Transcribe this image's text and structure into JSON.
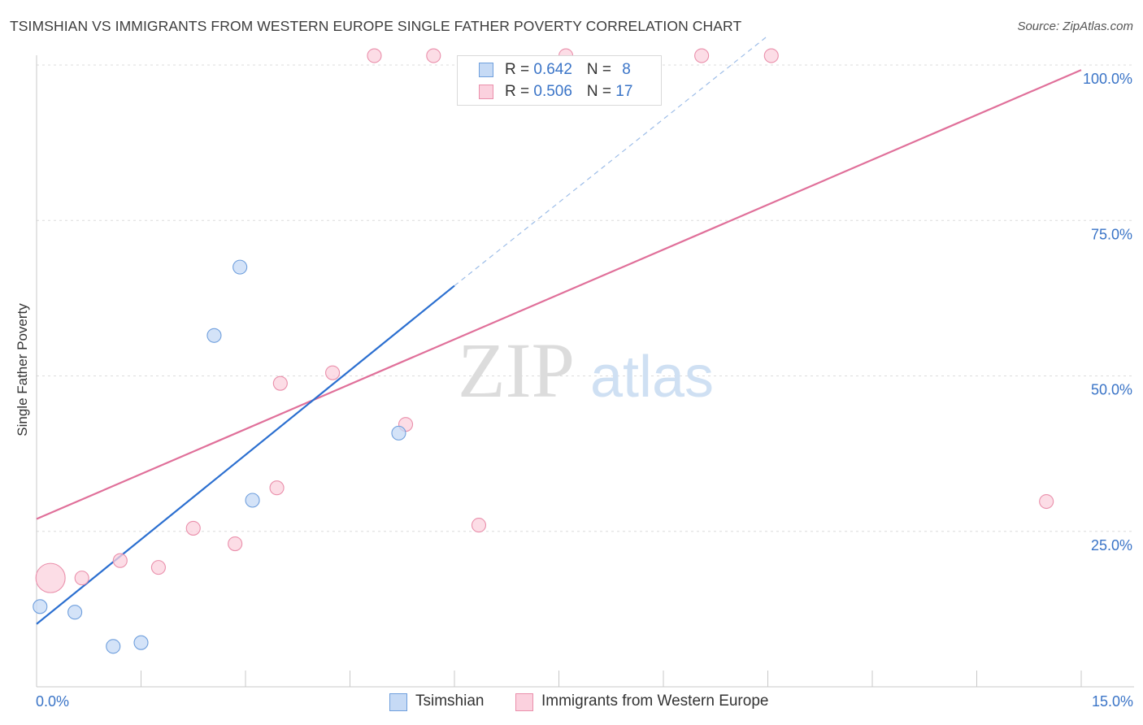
{
  "title": "TSIMSHIAN VS IMMIGRANTS FROM WESTERN EUROPE SINGLE FATHER POVERTY CORRELATION CHART",
  "source": "Source: ZipAtlas.com",
  "watermark": {
    "zip": "ZIP",
    "atlas": "atlas"
  },
  "colors": {
    "blue": "#6f9fdd",
    "blue_fill": "#c6daf5",
    "blue_line": "#2b6fd0",
    "pink": "#ea8fab",
    "pink_fill": "#fbd1de",
    "pink_line": "#e0709a",
    "tick_label": "#3a74c7",
    "grid": "#dcdcdc"
  },
  "legend_top": [
    {
      "series": "Tsimshian",
      "r_label": "R = ",
      "r_value": "0.642",
      "n_label": "N = ",
      "n_value": "8"
    },
    {
      "series": "Immigrants from Western Europe",
      "r_label": "R = ",
      "r_value": "0.506",
      "n_label": "N = ",
      "n_value": "17"
    }
  ],
  "chart_data": {
    "type": "scatter",
    "title": "TSIMSHIAN VS IMMIGRANTS FROM WESTERN EUROPE SINGLE FATHER POVERTY CORRELATION CHART",
    "xlabel": "",
    "ylabel": "Single Father Poverty",
    "xlim": [
      0,
      15
    ],
    "ylim": [
      0,
      100
    ],
    "x_tick_labels": [
      "0.0%",
      "15.0%"
    ],
    "y_ticks": [
      25,
      50,
      75,
      100
    ],
    "y_tick_labels": [
      "25.0%",
      "50.0%",
      "75.0%",
      "100.0%"
    ],
    "grid": true,
    "series": [
      {
        "name": "Tsimshian",
        "color": "#6f9fdd",
        "points": [
          {
            "x": 0.05,
            "y": 12.9,
            "size": 1
          },
          {
            "x": 0.55,
            "y": 12.0,
            "size": 1
          },
          {
            "x": 1.1,
            "y": 6.5,
            "size": 1
          },
          {
            "x": 1.5,
            "y": 7.1,
            "size": 1
          },
          {
            "x": 2.55,
            "y": 56.5,
            "size": 1
          },
          {
            "x": 2.92,
            "y": 67.5,
            "size": 1
          },
          {
            "x": 3.1,
            "y": 30.0,
            "size": 1
          },
          {
            "x": 5.2,
            "y": 40.8,
            "size": 1
          }
        ],
        "trend": {
          "x0": 0.0,
          "y0": 10.1,
          "x1": 6.0,
          "y1": 64.5,
          "dash_to_x": 10.5,
          "dash_to_y": 104.7
        }
      },
      {
        "name": "Immigrants from Western Europe",
        "color": "#ea8fab",
        "points": [
          {
            "x": 0.2,
            "y": 17.5,
            "size": 3
          },
          {
            "x": 0.65,
            "y": 17.5,
            "size": 1
          },
          {
            "x": 1.2,
            "y": 20.3,
            "size": 1
          },
          {
            "x": 1.75,
            "y": 19.2,
            "size": 1
          },
          {
            "x": 2.25,
            "y": 25.5,
            "size": 1
          },
          {
            "x": 2.85,
            "y": 23.0,
            "size": 1
          },
          {
            "x": 3.45,
            "y": 32.0,
            "size": 1
          },
          {
            "x": 3.5,
            "y": 48.8,
            "size": 1
          },
          {
            "x": 4.25,
            "y": 50.5,
            "size": 1
          },
          {
            "x": 5.3,
            "y": 42.2,
            "size": 1
          },
          {
            "x": 6.35,
            "y": 26.0,
            "size": 1
          },
          {
            "x": 4.85,
            "y": 101.5,
            "size": 1
          },
          {
            "x": 5.7,
            "y": 101.5,
            "size": 1
          },
          {
            "x": 7.6,
            "y": 101.5,
            "size": 1
          },
          {
            "x": 9.55,
            "y": 101.5,
            "size": 1
          },
          {
            "x": 10.55,
            "y": 101.5,
            "size": 1
          },
          {
            "x": 14.5,
            "y": 29.8,
            "size": 1
          }
        ],
        "trend": {
          "x0": 0.0,
          "y0": 27.0,
          "x1": 15.0,
          "y1": 99.2
        }
      }
    ]
  }
}
